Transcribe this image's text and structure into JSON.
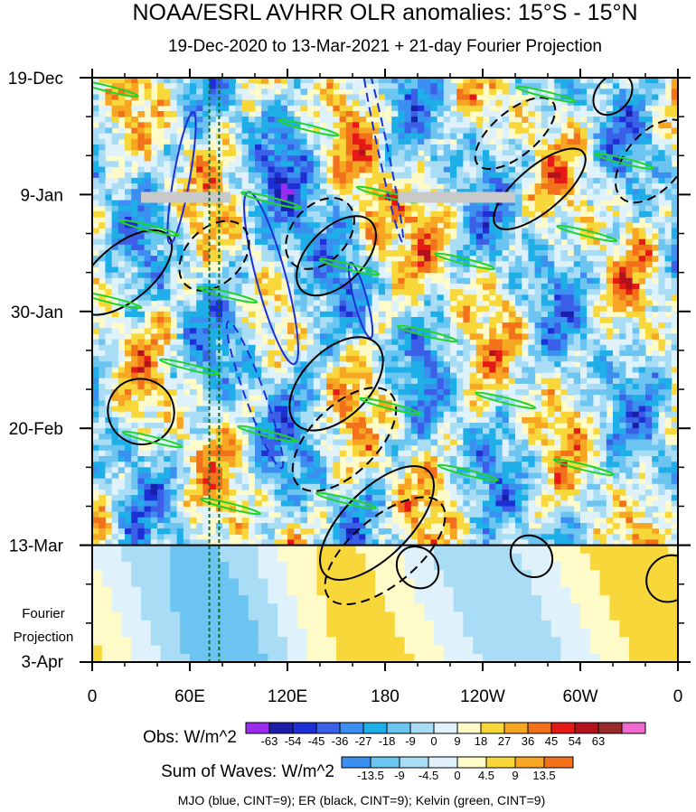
{
  "title": "NOAA/ESRL AVHRR OLR anomalies: 15°S - 15°N",
  "subtitle": "19-Dec-2020 to 13-Mar-2021 + 21-day Fourier Projection",
  "chart_data": {
    "type": "heatmap",
    "description_kind": "Hovmoller",
    "x_axis": {
      "range_deg_east": [
        0,
        360
      ],
      "ticks": [
        {
          "lon": 0,
          "label": "0"
        },
        {
          "lon": 60,
          "label": "60E"
        },
        {
          "lon": 120,
          "label": "120E"
        },
        {
          "lon": 180,
          "label": "180"
        },
        {
          "lon": 240,
          "label": "120W"
        },
        {
          "lon": 300,
          "label": "60W"
        },
        {
          "lon": 360,
          "label": "0"
        }
      ]
    },
    "y_axis": {
      "range_days": [
        0,
        105
      ],
      "ticks": [
        {
          "day": 0,
          "label": "19-Dec"
        },
        {
          "day": 21,
          "label": "9-Jan"
        },
        {
          "day": 42,
          "label": "30-Jan"
        },
        {
          "day": 63,
          "label": "20-Feb"
        },
        {
          "day": 84,
          "label": "13-Mar"
        },
        {
          "day": 105,
          "label": "3-Apr"
        }
      ]
    },
    "projection_label": [
      "Fourier",
      "Projection"
    ],
    "projection_start_day": 84,
    "reference_lines_lon": [
      72,
      78
    ],
    "obs_legend": {
      "label": "Obs: W/m^2",
      "levels": [
        -63,
        -54,
        -45,
        -36,
        -27,
        -18,
        -9,
        0,
        9,
        18,
        27,
        36,
        45,
        54,
        63
      ],
      "colors": [
        "#9a2cf0",
        "#1b1fa8",
        "#1f2fd6",
        "#3b5fe6",
        "#3b8ff0",
        "#1eaee8",
        "#6cc4f0",
        "#a9dcf5",
        "#dff2fb",
        "#fffbc8",
        "#f8d73b",
        "#f6a623",
        "#f2711b",
        "#e51a17",
        "#b3121c",
        "#9a2a2a",
        "#f06ad0"
      ]
    },
    "waves_legend": {
      "label": "Sum of Waves: W/m^2",
      "levels": [
        -13.5,
        -9,
        -4.5,
        0,
        4.5,
        9,
        13.5
      ],
      "colors": [
        "#3b8ff0",
        "#6cc4f0",
        "#a9dcf5",
        "#dff2fb",
        "#fffbc8",
        "#f8d73b",
        "#f6a623",
        "#f2711b"
      ]
    },
    "contours": [
      {
        "wave": "MJO",
        "color": "#1f2fd6",
        "cint": 9
      },
      {
        "wave": "ER",
        "color": "#000000",
        "cint": 9
      },
      {
        "wave": "Kelvin",
        "color": "#22d42a",
        "cint": 9
      }
    ],
    "gray_markers": [
      {
        "lon_start": 30,
        "lon_end": 85,
        "day": 21.5
      },
      {
        "lon_start": 188,
        "lon_end": 260,
        "day": 21.5
      }
    ]
  },
  "footer": "MJO (blue, CINT=9); ER (black, CINT=9); Kelvin (green, CINT=9)"
}
